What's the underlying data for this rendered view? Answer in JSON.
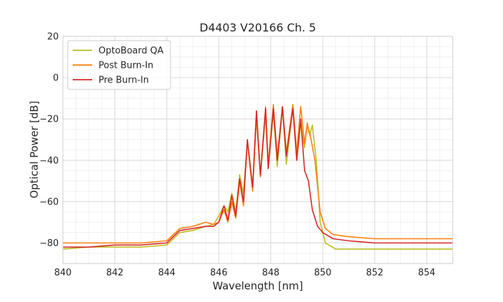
{
  "chart_data": {
    "type": "line",
    "title": "D4403 V20166 Ch. 5",
    "xlabel": "Wavelength [nm]",
    "ylabel": "Optical Power [dB]",
    "xlim": [
      840,
      855
    ],
    "ylim": [
      -90,
      20
    ],
    "x_ticks": [
      840,
      842,
      844,
      846,
      848,
      850,
      852,
      854
    ],
    "y_ticks": [
      -80,
      -60,
      -40,
      -20,
      0,
      20
    ],
    "x_tick_labels": [
      "840",
      "842",
      "844",
      "846",
      "848",
      "850",
      "852",
      "854"
    ],
    "y_tick_labels": [
      "−80",
      "−60",
      "−40",
      "−20",
      "0",
      "20"
    ],
    "grid": true,
    "minor_grid": true,
    "legend_position": "top-left",
    "series": [
      {
        "name": "OptoBoard QA",
        "color": "#bcbd22",
        "x": [
          840.0,
          841.0,
          842.0,
          843.0,
          844.0,
          844.5,
          845.0,
          845.5,
          845.8,
          846.0,
          846.2,
          846.35,
          846.5,
          846.65,
          846.8,
          846.95,
          847.1,
          847.3,
          847.45,
          847.6,
          847.8,
          847.9,
          848.1,
          848.25,
          848.45,
          848.6,
          848.85,
          849.0,
          849.15,
          849.3,
          849.4,
          849.5,
          849.6,
          849.75,
          849.9,
          850.1,
          850.5,
          851.0,
          852.0,
          853.0,
          854.0,
          855.0
        ],
        "values": [
          -83,
          -82,
          -82,
          -82,
          -81,
          -75,
          -74,
          -72,
          -71,
          -67,
          -62,
          -65,
          -56,
          -65,
          -47,
          -56,
          -31,
          -54,
          -20,
          -48,
          -18,
          -44,
          -17,
          -43,
          -15,
          -42,
          -14,
          -40,
          -22,
          -34,
          -23,
          -28,
          -23,
          -40,
          -70,
          -80,
          -83,
          -83,
          -83,
          -83,
          -83,
          -83
        ]
      },
      {
        "name": "Post Burn-In",
        "color": "#ff7f0e",
        "x": [
          840.0,
          841.0,
          842.0,
          843.0,
          844.0,
          844.5,
          845.0,
          845.5,
          845.8,
          846.0,
          846.2,
          846.35,
          846.5,
          846.65,
          846.8,
          846.95,
          847.1,
          847.3,
          847.45,
          847.6,
          847.8,
          847.9,
          848.1,
          848.25,
          848.45,
          848.6,
          848.85,
          849.0,
          849.15,
          849.3,
          849.4,
          849.55,
          849.7,
          849.9,
          850.1,
          850.4,
          851.0,
          852.0,
          853.0,
          854.0,
          855.0
        ],
        "values": [
          -80,
          -80,
          -80,
          -80,
          -79,
          -73,
          -72,
          -70,
          -71,
          -70,
          -64,
          -70,
          -60,
          -68,
          -50,
          -62,
          -31,
          -55,
          -18,
          -48,
          -14,
          -42,
          -13,
          -38,
          -14,
          -36,
          -13,
          -36,
          -14,
          -32,
          -22,
          -30,
          -40,
          -65,
          -73,
          -76,
          -77,
          -78,
          -78,
          -78,
          -78
        ]
      },
      {
        "name": "Pre Burn-In",
        "color": "#d62728",
        "x": [
          840.0,
          841.0,
          842.0,
          843.0,
          844.0,
          844.5,
          845.0,
          845.5,
          845.8,
          846.0,
          846.2,
          846.35,
          846.5,
          846.65,
          846.8,
          846.95,
          847.1,
          847.3,
          847.45,
          847.6,
          847.8,
          847.9,
          848.1,
          848.25,
          848.45,
          848.6,
          848.85,
          849.0,
          849.15,
          849.3,
          849.45,
          849.6,
          849.8,
          850.0,
          850.4,
          851.0,
          852.0,
          853.0,
          854.0,
          855.0
        ],
        "values": [
          -82,
          -82,
          -81,
          -81,
          -80,
          -74,
          -73,
          -72,
          -72,
          -70,
          -62,
          -69,
          -57,
          -67,
          -49,
          -60,
          -30,
          -53,
          -16,
          -47,
          -15,
          -44,
          -15,
          -40,
          -14,
          -38,
          -15,
          -40,
          -20,
          -45,
          -50,
          -64,
          -72,
          -75,
          -78,
          -79,
          -80,
          -80,
          -80,
          -80
        ]
      }
    ]
  }
}
